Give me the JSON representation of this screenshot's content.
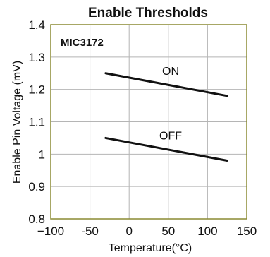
{
  "chart_data": {
    "type": "line",
    "title": "Enable Thresholds",
    "annotation": "MIC3172",
    "xlabel": "Temperature(°C)",
    "ylabel": "Enable Pin Voltage (mV)",
    "xlim": [
      -100,
      150
    ],
    "ylim": [
      0.8,
      1.4
    ],
    "x_ticks": [
      -100,
      -50,
      0,
      50,
      100,
      150
    ],
    "x_tick_labels": [
      "−100",
      "-50",
      "0",
      "50",
      "100",
      "150"
    ],
    "y_ticks": [
      0.8,
      0.9,
      1.0,
      1.1,
      1.2,
      1.3,
      1.4
    ],
    "y_tick_labels": [
      "0.8",
      "0.9",
      "1",
      "1.1",
      "1.2",
      "1.3",
      "1.4"
    ],
    "grid": true,
    "series": [
      {
        "name": "ON",
        "x": [
          -30,
          125
        ],
        "y": [
          1.25,
          1.18
        ]
      },
      {
        "name": "OFF",
        "x": [
          -30,
          125
        ],
        "y": [
          1.05,
          0.98
        ]
      }
    ],
    "colors": {
      "frame": "#8a8a32",
      "grid": "#b5b5b5",
      "line": "#111111"
    }
  }
}
